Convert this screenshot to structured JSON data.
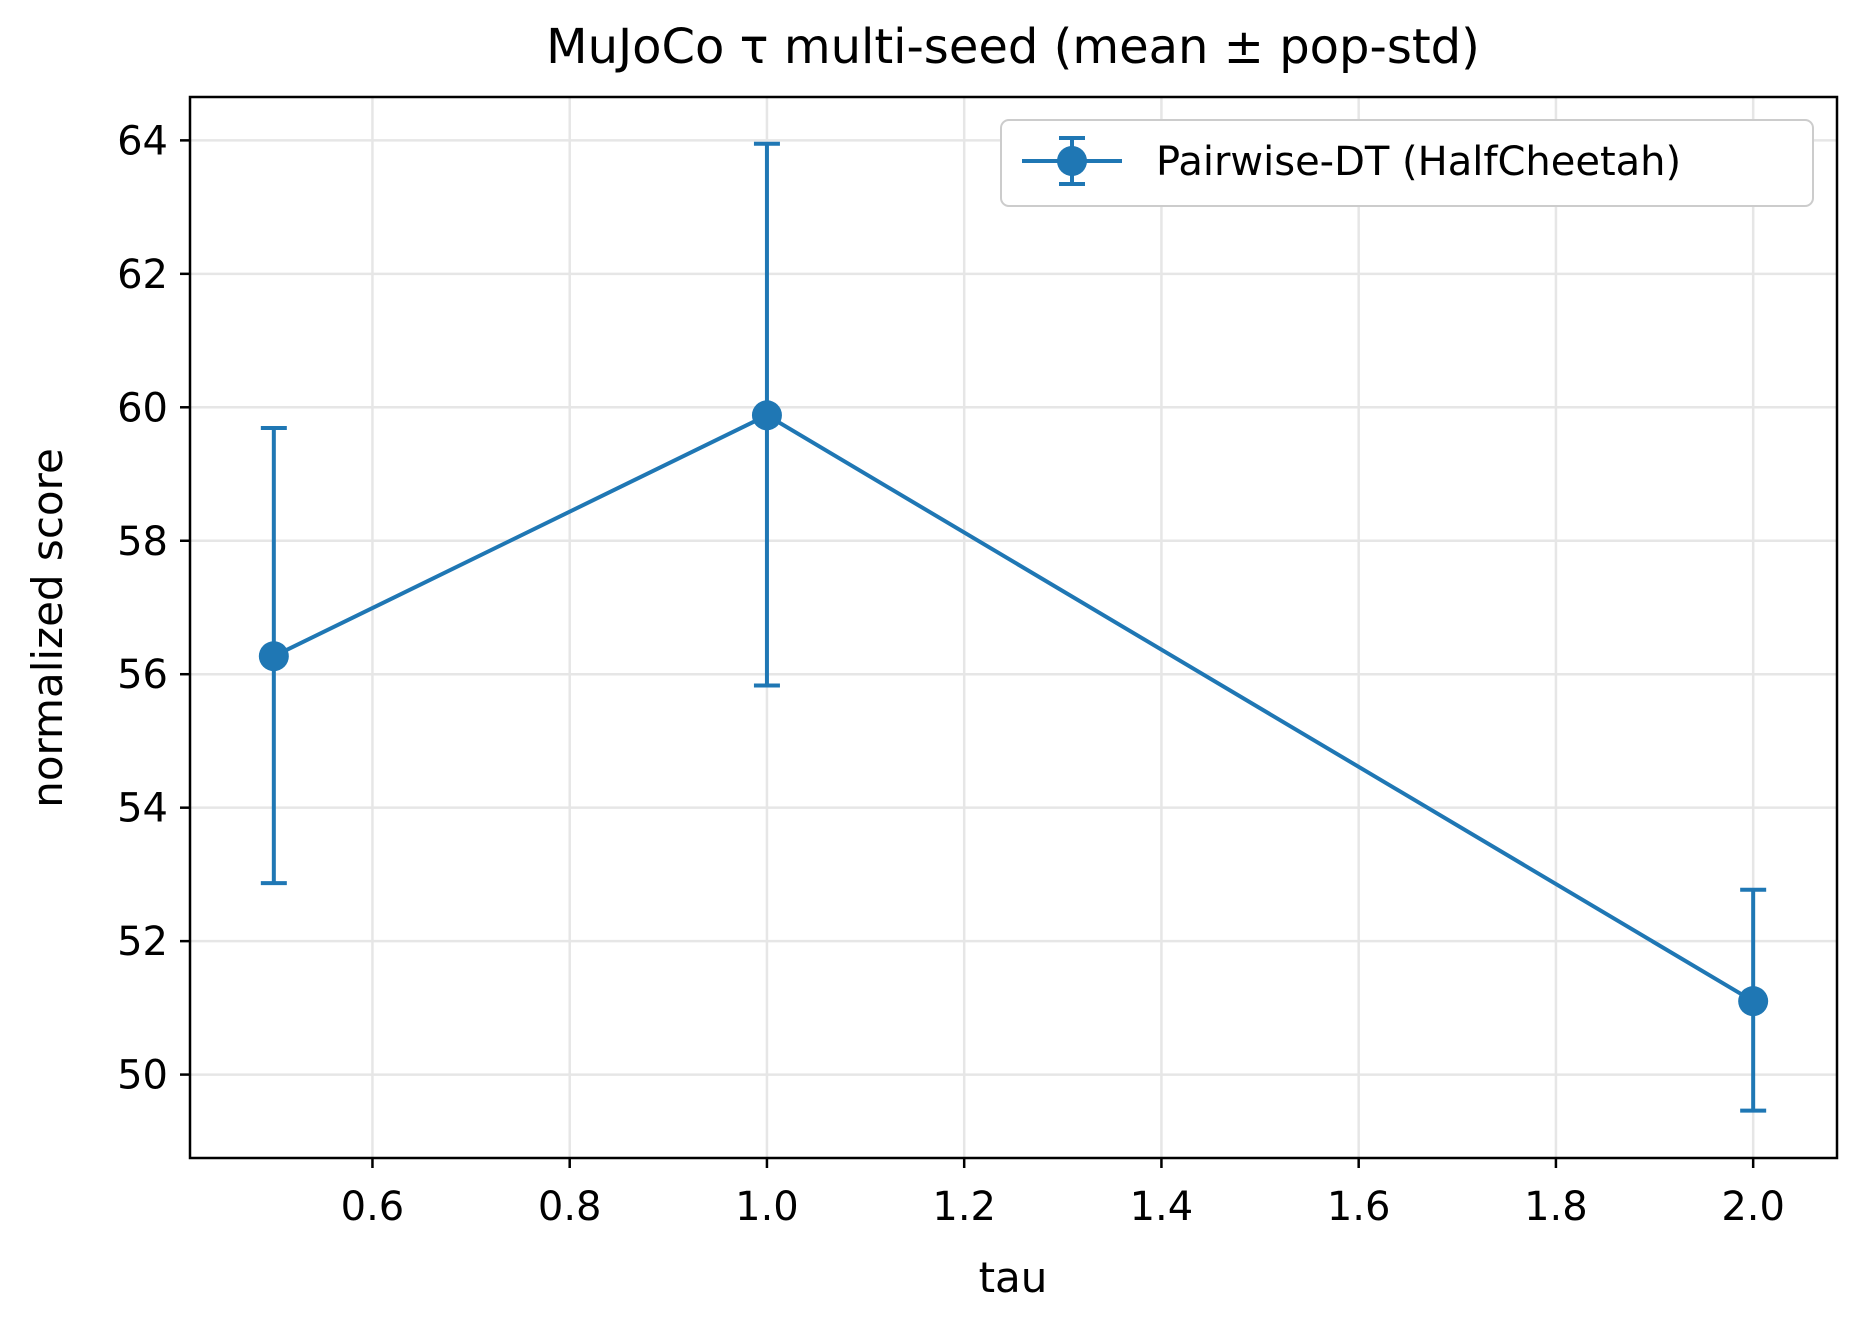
{
  "chart_data": {
    "type": "line",
    "title": "MuJoCo τ multi-seed (mean ± pop-std)",
    "xlabel": "tau",
    "ylabel": "normalized score",
    "xlim": [
      0.415,
      2.085
    ],
    "ylim": [
      48.75,
      64.65
    ],
    "xticks": [
      0.6,
      0.8,
      1.0,
      1.2,
      1.4,
      1.6,
      1.8,
      2.0
    ],
    "xtick_labels": [
      "0.6",
      "0.8",
      "1.0",
      "1.2",
      "1.4",
      "1.6",
      "1.8",
      "2.0"
    ],
    "yticks": [
      50,
      52,
      54,
      56,
      58,
      60,
      62,
      64
    ],
    "ytick_labels": [
      "50",
      "52",
      "54",
      "56",
      "58",
      "60",
      "62",
      "64"
    ],
    "grid": true,
    "legend_position": "upper-right",
    "series": [
      {
        "name": "Pairwise-DT (HalfCheetah)",
        "color": "#1f77b4",
        "x": [
          0.5,
          1.0,
          2.0
        ],
        "y": [
          56.27,
          59.88,
          51.1
        ],
        "yerr_lower": [
          52.87,
          55.83,
          49.46
        ],
        "yerr_upper": [
          59.69,
          63.95,
          52.77
        ]
      }
    ]
  }
}
